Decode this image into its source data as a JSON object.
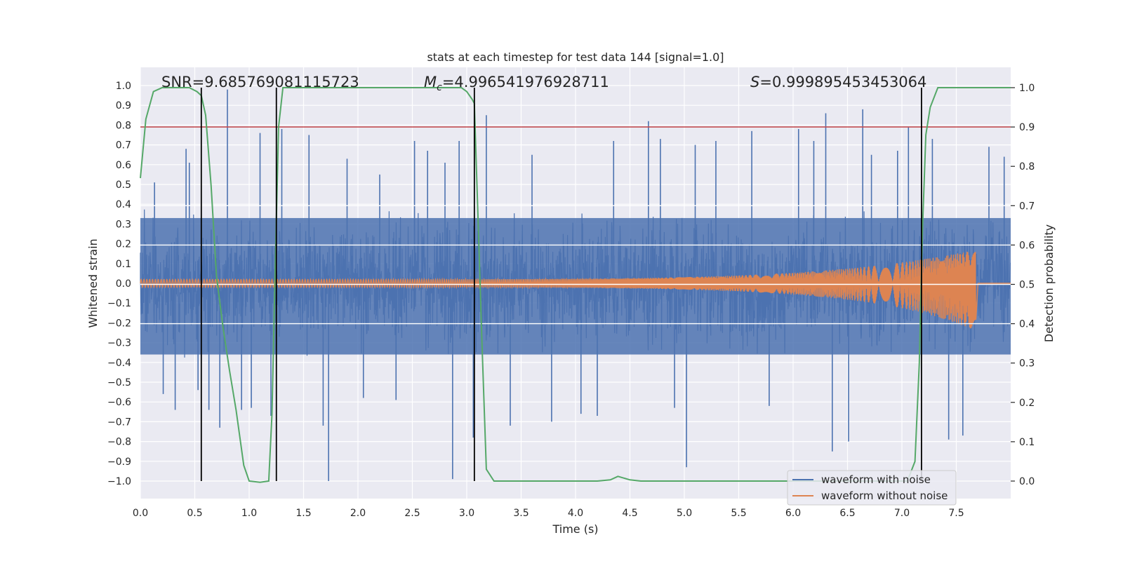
{
  "chart_data": {
    "type": "line",
    "title": "stats at each timestep for test data 144 [signal=1.0]",
    "xlabel": "Time (s)",
    "ylabel": "Whitened strain",
    "y2label": "Detection probability",
    "xlim": [
      0.0,
      8.0
    ],
    "ylim": [
      -1.1,
      1.1
    ],
    "y2lim": [
      -0.05,
      1.05
    ],
    "xticks": [
      "0.0",
      "0.5",
      "1.0",
      "1.5",
      "2.0",
      "2.5",
      "3.0",
      "3.5",
      "4.0",
      "4.5",
      "5.0",
      "5.5",
      "6.0",
      "6.5",
      "7.0",
      "7.5"
    ],
    "yticks": [
      "−1.0",
      "−0.9",
      "−0.8",
      "−0.7",
      "−0.6",
      "−0.5",
      "−0.4",
      "−0.3",
      "−0.2",
      "−0.1",
      "0.0",
      "0.1",
      "0.2",
      "0.3",
      "0.4",
      "0.5",
      "0.6",
      "0.7",
      "0.8",
      "0.9",
      "1.0"
    ],
    "y2ticks": [
      "0.0",
      "0.1",
      "0.2",
      "0.3",
      "0.4",
      "0.5",
      "0.6",
      "0.7",
      "0.8",
      "0.9",
      "1.0"
    ],
    "grid": true,
    "legend_position": "lower-right",
    "annotations": {
      "snr": "SNR=9.685769081115723",
      "mc_symbol": "M",
      "mc_sub": "c",
      "mc_value": "=4.996541976928711",
      "s_symbol": "S",
      "s_value": "=0.999895453453064"
    },
    "threshold": {
      "value": 0.9,
      "axis": "right",
      "color": "#c44e52"
    },
    "vlines": [
      0.56,
      1.25,
      3.07,
      7.18
    ],
    "series": [
      {
        "name": "waveform with noise",
        "color": "#4c72b0",
        "axis": "left",
        "duration": 8.0,
        "envelope": 0.4,
        "spikes": [
          [
            0.13,
            0.51
          ],
          [
            0.21,
            -0.56
          ],
          [
            0.32,
            -0.64
          ],
          [
            0.42,
            0.68
          ],
          [
            0.45,
            0.61
          ],
          [
            0.53,
            -0.54
          ],
          [
            0.63,
            -0.64
          ],
          [
            0.73,
            -0.73
          ],
          [
            0.8,
            0.98
          ],
          [
            0.93,
            -0.64
          ],
          [
            1.02,
            -0.63
          ],
          [
            1.1,
            0.76
          ],
          [
            1.2,
            -0.67
          ],
          [
            1.3,
            0.78
          ],
          [
            1.55,
            0.75
          ],
          [
            1.68,
            -0.72
          ],
          [
            1.73,
            -1.0
          ],
          [
            1.9,
            0.63
          ],
          [
            2.05,
            -0.58
          ],
          [
            2.2,
            0.55
          ],
          [
            2.35,
            -0.59
          ],
          [
            2.52,
            0.72
          ],
          [
            2.64,
            0.67
          ],
          [
            2.8,
            0.61
          ],
          [
            2.87,
            -0.99
          ],
          [
            2.93,
            0.72
          ],
          [
            3.06,
            -0.78
          ],
          [
            3.18,
            0.85
          ],
          [
            3.4,
            -0.72
          ],
          [
            3.6,
            0.65
          ],
          [
            3.78,
            -0.7
          ],
          [
            4.05,
            -0.66
          ],
          [
            4.2,
            -0.67
          ],
          [
            4.35,
            0.72
          ],
          [
            4.67,
            0.82
          ],
          [
            4.78,
            0.73
          ],
          [
            4.91,
            -0.63
          ],
          [
            5.02,
            -0.93
          ],
          [
            5.1,
            0.7
          ],
          [
            5.29,
            0.72
          ],
          [
            5.62,
            0.77
          ],
          [
            5.78,
            -0.62
          ],
          [
            6.05,
            0.78
          ],
          [
            6.19,
            0.72
          ],
          [
            6.3,
            0.86
          ],
          [
            6.36,
            -0.85
          ],
          [
            6.51,
            -0.8
          ],
          [
            6.64,
            0.88
          ],
          [
            6.72,
            0.65
          ],
          [
            6.96,
            0.67
          ],
          [
            7.06,
            0.79
          ],
          [
            7.28,
            0.73
          ],
          [
            7.43,
            -0.79
          ],
          [
            7.56,
            -0.77
          ],
          [
            7.8,
            0.69
          ],
          [
            7.94,
            0.64
          ]
        ]
      },
      {
        "name": "waveform without noise",
        "color": "#dd8452",
        "axis": "left",
        "base_amplitude": 0.02,
        "merger_time": 7.68,
        "peak_amplitude": 0.17,
        "peak_negative": -0.24
      },
      {
        "name": "detection probability",
        "color": "#55a868",
        "axis": "right",
        "points": [
          [
            0.0,
            0.77
          ],
          [
            0.05,
            0.92
          ],
          [
            0.12,
            0.99
          ],
          [
            0.2,
            1.0
          ],
          [
            0.35,
            1.0
          ],
          [
            0.45,
            1.0
          ],
          [
            0.52,
            0.99
          ],
          [
            0.56,
            0.98
          ],
          [
            0.6,
            0.93
          ],
          [
            0.65,
            0.75
          ],
          [
            0.7,
            0.52
          ],
          [
            0.76,
            0.39
          ],
          [
            0.82,
            0.28
          ],
          [
            0.88,
            0.18
          ],
          [
            0.95,
            0.04
          ],
          [
            1.0,
            0.0
          ],
          [
            1.1,
            -0.003
          ],
          [
            1.18,
            0.0
          ],
          [
            1.21,
            0.17
          ],
          [
            1.24,
            0.55
          ],
          [
            1.27,
            0.9
          ],
          [
            1.31,
            1.0
          ],
          [
            1.5,
            1.0
          ],
          [
            2.5,
            1.0
          ],
          [
            2.95,
            1.0
          ],
          [
            3.0,
            0.99
          ],
          [
            3.05,
            0.97
          ],
          [
            3.07,
            0.96
          ],
          [
            3.1,
            0.7
          ],
          [
            3.14,
            0.35
          ],
          [
            3.18,
            0.03
          ],
          [
            3.25,
            0.0
          ],
          [
            3.5,
            0.0
          ],
          [
            4.2,
            0.0
          ],
          [
            4.32,
            0.003
          ],
          [
            4.39,
            0.012
          ],
          [
            4.5,
            0.003
          ],
          [
            4.6,
            0.0
          ],
          [
            5.5,
            0.0
          ],
          [
            6.5,
            0.0
          ],
          [
            7.05,
            0.0
          ],
          [
            7.12,
            0.05
          ],
          [
            7.16,
            0.3
          ],
          [
            7.19,
            0.65
          ],
          [
            7.22,
            0.88
          ],
          [
            7.26,
            0.95
          ],
          [
            7.33,
            1.0
          ],
          [
            8.0,
            1.0
          ]
        ]
      }
    ]
  }
}
